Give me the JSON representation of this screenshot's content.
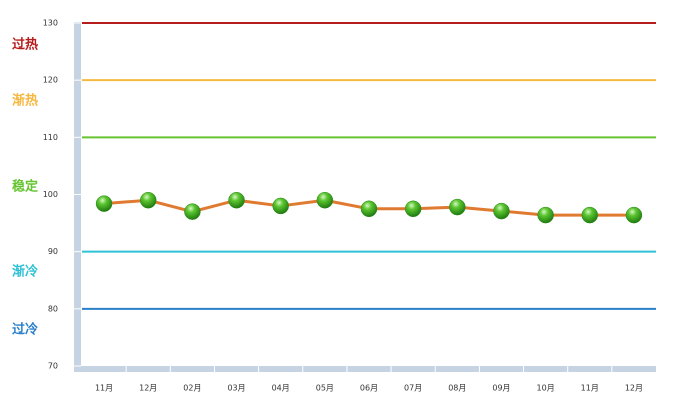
{
  "chart_data": {
    "type": "line",
    "categories": [
      "11月",
      "12月",
      "02月",
      "03月",
      "04月",
      "05月",
      "06月",
      "07月",
      "08月",
      "09月",
      "10月",
      "11月",
      "12月"
    ],
    "series": [
      {
        "color": "#e07a30",
        "marker_color": "#3aa81c",
        "values": [
          98.4,
          99.0,
          97.0,
          99.0,
          98.0,
          99.0,
          97.5,
          97.5,
          97.8,
          97.1,
          96.4,
          96.4,
          96.4
        ]
      }
    ],
    "ylim": [
      70,
      130
    ],
    "yticks": [
      70,
      80,
      90,
      100,
      110,
      120,
      130
    ],
    "thresholds": [
      {
        "value": 130,
        "label": "过热",
        "color": "#b71c1c"
      },
      {
        "value": 120,
        "label": "渐热",
        "color": "#f5b942"
      },
      {
        "value": 110,
        "label": "稳定",
        "color": "#66c431"
      },
      {
        "value": 90,
        "label": "渐冷",
        "color": "#2fc1d6"
      },
      {
        "value": 80,
        "label": "过冷",
        "color": "#2a7fc9"
      }
    ]
  }
}
